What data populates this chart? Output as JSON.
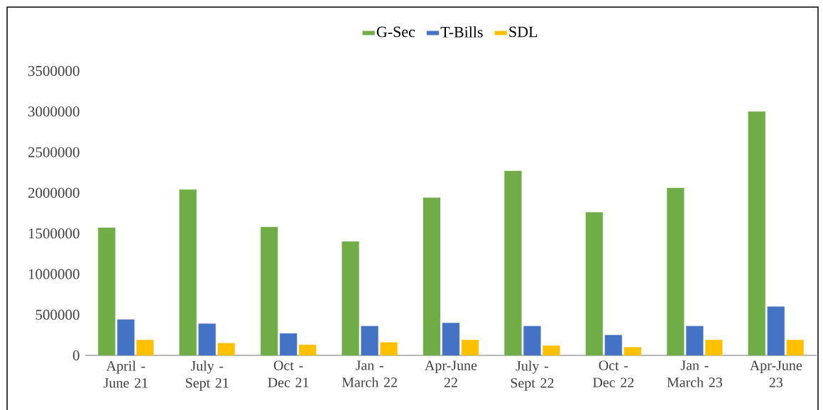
{
  "chart_data": {
    "type": "bar",
    "categories": [
      "April - June 21",
      "July - Sept 21",
      "Oct - Dec 21",
      "Jan - March 22",
      "Apr-June 22",
      "July - Sept 22",
      "Oct - Dec 22",
      "Jan - March 23",
      "Apr-June 23"
    ],
    "series": [
      {
        "name": "G-Sec",
        "color": "#70ad47",
        "values": [
          1570000,
          2040000,
          1580000,
          1400000,
          1940000,
          2270000,
          1760000,
          2060000,
          3000000
        ]
      },
      {
        "name": "T-Bills",
        "color": "#4472c4",
        "values": [
          440000,
          390000,
          270000,
          360000,
          400000,
          360000,
          250000,
          360000,
          600000
        ]
      },
      {
        "name": "SDL",
        "color": "#ffc000",
        "values": [
          190000,
          150000,
          130000,
          160000,
          190000,
          120000,
          100000,
          190000,
          190000
        ]
      }
    ],
    "ylim": [
      0,
      3500000
    ],
    "yticks": [
      0,
      500000,
      1000000,
      1500000,
      2000000,
      2500000,
      3000000,
      3500000
    ],
    "grid": false,
    "legend": "top"
  }
}
